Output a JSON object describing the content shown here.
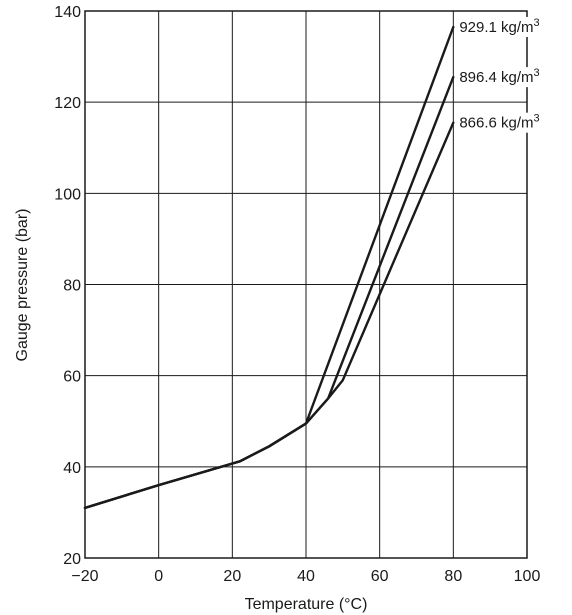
{
  "chart_data": {
    "type": "line",
    "title": "",
    "xlabel": "Temperature (°C)",
    "ylabel": "Gauge pressure (bar)",
    "xlim": [
      -20,
      100
    ],
    "ylim": [
      20,
      140
    ],
    "x_ticks": [
      -20,
      0,
      20,
      40,
      60,
      80,
      100
    ],
    "y_ticks": [
      20,
      40,
      60,
      80,
      100,
      120,
      140
    ],
    "x_tick_labels": [
      "−20",
      "0",
      "20",
      "40",
      "60",
      "80",
      "100"
    ],
    "y_tick_labels": [
      "20",
      "40",
      "60",
      "80",
      "100",
      "120",
      "140"
    ],
    "grid": true,
    "series": [
      {
        "name": "929.1 kg/m³",
        "x": [
          -20,
          0,
          22,
          30,
          40,
          80
        ],
        "y": [
          31,
          36,
          41.2,
          44.5,
          49.5,
          136.5
        ],
        "label_value": 929.1,
        "label_unit": "kg/m³"
      },
      {
        "name": "896.4 kg/m³",
        "x": [
          -20,
          0,
          22,
          30,
          40,
          46,
          80
        ],
        "y": [
          31,
          36,
          41.2,
          44.5,
          49.5,
          55,
          125.5
        ],
        "label_value": 896.4,
        "label_unit": "kg/m³"
      },
      {
        "name": "866.6 kg/m³",
        "x": [
          -20,
          0,
          22,
          30,
          40,
          46,
          50,
          80
        ],
        "y": [
          31,
          36,
          41.2,
          44.5,
          49.5,
          55,
          59,
          115.5
        ],
        "label_value": 866.6,
        "label_unit": "kg/m³"
      }
    ]
  }
}
